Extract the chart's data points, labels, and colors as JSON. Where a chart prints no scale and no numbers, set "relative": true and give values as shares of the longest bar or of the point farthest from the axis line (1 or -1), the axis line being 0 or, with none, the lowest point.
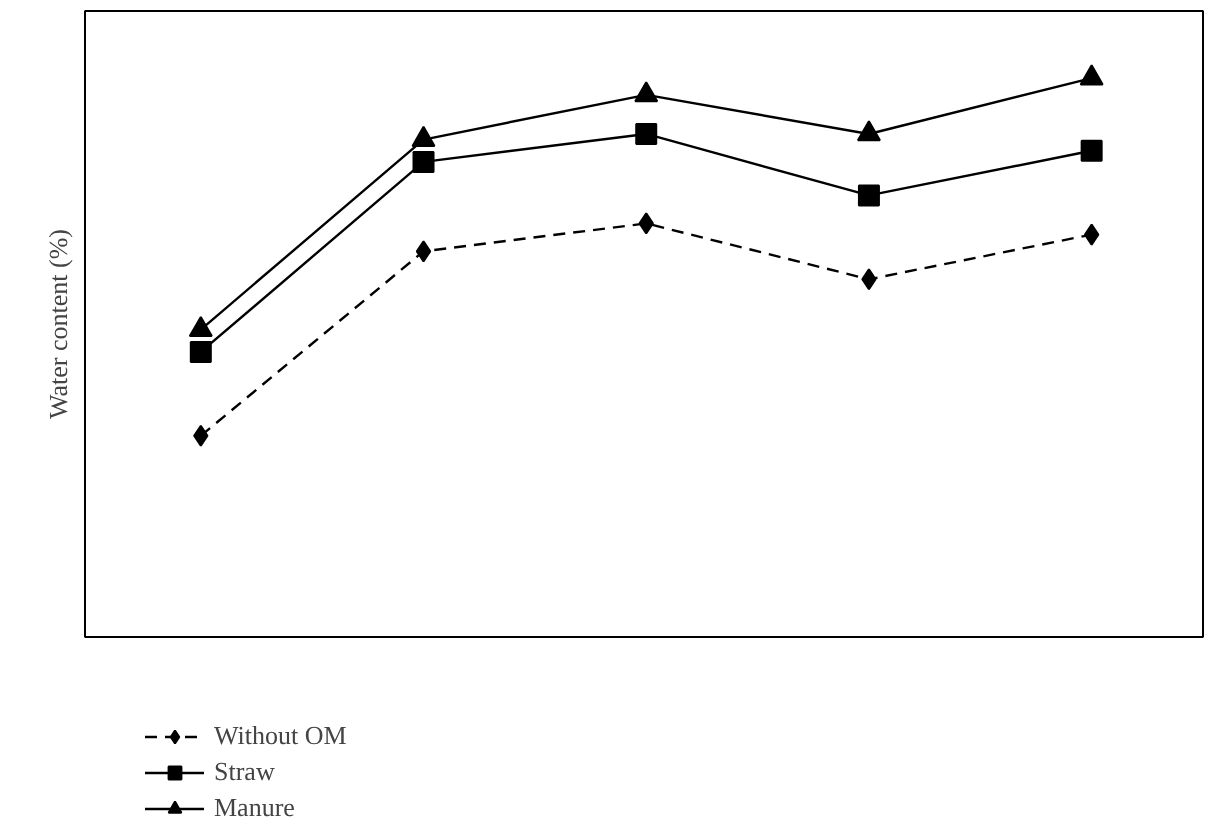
{
  "chart_data": {
    "type": "line",
    "relative": true,
    "ylabel": "Water content (%)",
    "categories": [
      null,
      null,
      null,
      null,
      null
    ],
    "series": [
      {
        "name": "Without OM",
        "color": "#000000",
        "marker": "diamond",
        "line_style": "dashed",
        "values": [
          0.36,
          0.69,
          0.74,
          0.64,
          0.72
        ]
      },
      {
        "name": "Straw",
        "color": "#000000",
        "marker": "square",
        "line_style": "solid",
        "values": [
          0.51,
          0.85,
          0.9,
          0.79,
          0.87
        ]
      },
      {
        "name": "Manure",
        "color": "#000000",
        "marker": "triangle",
        "line_style": "solid",
        "values": [
          0.55,
          0.89,
          0.97,
          0.9,
          1.0
        ]
      }
    ],
    "legend": "bottom"
  }
}
